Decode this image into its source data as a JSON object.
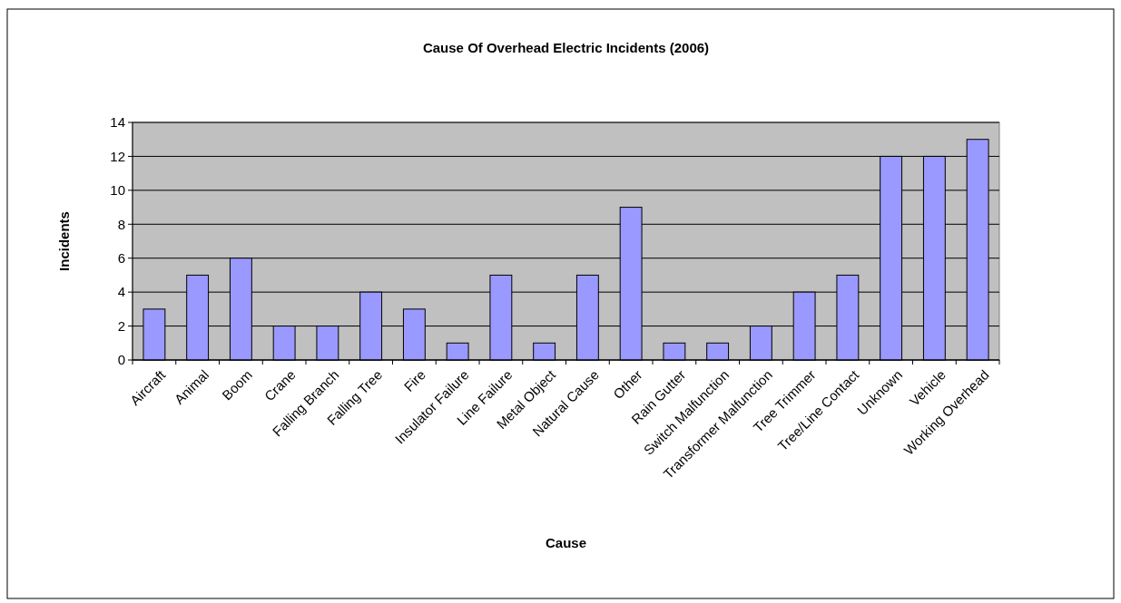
{
  "chart_data": {
    "type": "bar",
    "title": "Cause Of Overhead Electric Incidents (2006)",
    "xlabel": "Cause",
    "ylabel": "Incidents",
    "categories": [
      "Aircraft",
      "Animal",
      "Boom",
      "Crane",
      "Falling Branch",
      "Falling Tree",
      "Fire",
      "Insulator Failure",
      "Line Failure",
      "Metal Object",
      "Natural Cause",
      "Other",
      "Rain Gutter",
      "Switch Malfunction",
      "Transformer Malfunction",
      "Tree Trimmer",
      "Tree/Line Contact",
      "Unknown",
      "Vehicle",
      "Working Overhead"
    ],
    "values": [
      3,
      5,
      6,
      2,
      2,
      4,
      3,
      1,
      5,
      1,
      5,
      9,
      1,
      1,
      2,
      4,
      5,
      12,
      12,
      13
    ],
    "color": "#9999ff",
    "ylim": [
      0,
      14
    ],
    "yticks": [
      0,
      2,
      4,
      6,
      8,
      10,
      12,
      14
    ],
    "grid": "y"
  }
}
